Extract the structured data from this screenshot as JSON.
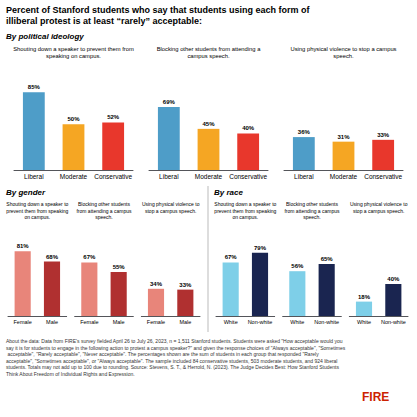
{
  "title": "Percent of Stanford students who say that students using each form of\nilliberal protest is at least “rarely” acceptable:",
  "annotations": [
    {
      "text": "By political ideology"
    },
    {
      "text": "By gender"
    },
    {
      "text": "By race"
    },
    {
      "text": "About the data: Data from FIRE's survey fielded April 26 to July 26, 2023, n = 1,511 Stanford students. Students were asked \"How acceptable would you say it is for students to engage in the following action to protest a campus speaker?\" and given the response choices of \"Always acceptable\", \"Sometimes acceptable\", \"Rarely acceptable\", \"Never acceptable\". The percentages shown are the sum of students in each group that responded \"Rarely acceptable\", \"Sometimes acceptable\", or \"Always acceptable\". The sample included 84 conservative students, 503 moderate students, and 924 liberal students. Totals may not add up to 100 due to rounding. Source: Stevens, S. T., & Herrold, N. (2023). The Judge Decides Best: How Stanford Students Think About Freedom of Individual Rights and Expression.",
      "color": "#333333"
    },
    {
      "text": "FIRE",
      "color": "#cc2200"
    }
  ],
  "chart_data": [
    {
      "type": "bar",
      "title": "Shouting down a speaker to prevent them from\nspeaking on campus.",
      "categories": [
        "Liberal",
        "Moderate",
        "Conservative"
      ],
      "values": [
        85,
        50,
        52
      ],
      "value_labels": [
        "85%",
        "50%",
        "52%"
      ],
      "colors": [
        "#4e9dc8",
        "#f5a623",
        "#e8372c"
      ],
      "ylim": [
        0,
        105
      ],
      "grid": false,
      "data_labels": true,
      "tick_labels": "x"
    },
    {
      "type": "bar",
      "title": "Blocking other students from attending a\ncampus speech.",
      "categories": [
        "Liberal",
        "Moderate",
        "Conservative"
      ],
      "values": [
        69,
        45,
        40
      ],
      "value_labels": [
        "69%",
        "45%",
        "40%"
      ],
      "colors": [
        "#4e9dc8",
        "#f5a623",
        "#e8372c"
      ],
      "ylim": [
        0,
        105
      ],
      "grid": false,
      "data_labels": true,
      "tick_labels": "x"
    },
    {
      "type": "bar",
      "title": "Using physical violence to stop a campus\nspeech.",
      "categories": [
        "Liberal",
        "Moderate",
        "Conservative"
      ],
      "values": [
        36,
        31,
        33
      ],
      "value_labels": [
        "36%",
        "31%",
        "33%"
      ],
      "colors": [
        "#4e9dc8",
        "#f5a623",
        "#e8372c"
      ],
      "ylim": [
        0,
        105
      ],
      "grid": false,
      "data_labels": true,
      "tick_labels": "x"
    },
    {
      "type": "bar",
      "title": "Shouting down a speaker to\nprevent them from speaking\non campus.",
      "categories": [
        "Female",
        "Male"
      ],
      "values": [
        81,
        68
      ],
      "value_labels": [
        "81%",
        "68%"
      ],
      "colors": [
        "#e8857a",
        "#b03030"
      ],
      "ylim": [
        0,
        105
      ],
      "grid": false,
      "data_labels": true,
      "tick_labels": "x"
    },
    {
      "type": "bar",
      "title": "Blocking other students\nfrom attending a campus\nspeech.",
      "categories": [
        "Female",
        "Male"
      ],
      "values": [
        67,
        55
      ],
      "value_labels": [
        "67%",
        "55%"
      ],
      "colors": [
        "#e8857a",
        "#b03030"
      ],
      "ylim": [
        0,
        105
      ],
      "grid": false,
      "data_labels": true,
      "tick_labels": "x"
    },
    {
      "type": "bar",
      "title": "Using physical violence to\nstop a campus speech.",
      "categories": [
        "Female",
        "Male"
      ],
      "values": [
        34,
        33
      ],
      "value_labels": [
        "34%",
        "33%"
      ],
      "colors": [
        "#e8857a",
        "#b03030"
      ],
      "ylim": [
        0,
        105
      ],
      "grid": false,
      "data_labels": true,
      "tick_labels": "x"
    },
    {
      "type": "bar",
      "title": "Shouting down a speaker to\nprevent them from speaking\non campus.",
      "categories": [
        "White",
        "Non-white"
      ],
      "values": [
        67,
        79
      ],
      "value_labels": [
        "67%",
        "79%"
      ],
      "colors": [
        "#7ecfe8",
        "#1a2550"
      ],
      "ylim": [
        0,
        105
      ],
      "grid": false,
      "data_labels": true,
      "tick_labels": "x"
    },
    {
      "type": "bar",
      "title": "Blocking other students\nfrom attending a campus\nspeech.",
      "categories": [
        "White",
        "Non-white"
      ],
      "values": [
        56,
        65
      ],
      "value_labels": [
        "56%",
        "65%"
      ],
      "colors": [
        "#7ecfe8",
        "#1a2550"
      ],
      "ylim": [
        0,
        105
      ],
      "grid": false,
      "data_labels": true,
      "tick_labels": "x"
    },
    {
      "type": "bar",
      "title": "Using physical violence to\nstop a campus speech.",
      "categories": [
        "White",
        "Non-white"
      ],
      "values": [
        18,
        40
      ],
      "value_labels": [
        "18%",
        "40%"
      ],
      "colors": [
        "#7ecfe8",
        "#1a2550"
      ],
      "ylim": [
        0,
        105
      ],
      "grid": false,
      "data_labels": true,
      "tick_labels": "x"
    }
  ]
}
